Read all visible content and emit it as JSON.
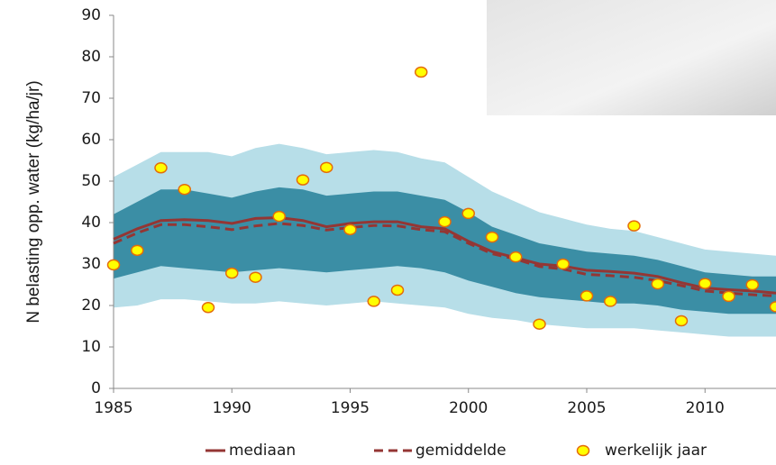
{
  "chart_data": {
    "type": "line",
    "y_label": "N belasting opp. water (kg/ha/jr)",
    "x": [
      1985,
      1986,
      1987,
      1988,
      1989,
      1990,
      1991,
      1992,
      1993,
      1994,
      1995,
      1996,
      1997,
      1998,
      1999,
      2000,
      2001,
      2002,
      2003,
      2004,
      2005,
      2006,
      2007,
      2008,
      2009,
      2010,
      2011,
      2012,
      2013
    ],
    "xlim": [
      1985,
      2013
    ],
    "xticks": [
      1985,
      1990,
      1995,
      2000,
      2005,
      2010
    ],
    "ylim": [
      0,
      90
    ],
    "yticks": [
      0,
      10,
      20,
      30,
      40,
      50,
      60,
      70,
      80,
      90
    ],
    "grid": false,
    "legend": "bottom",
    "bands": [
      {
        "color": "#b7dee8",
        "upper": [
          51,
          54,
          57,
          57,
          57,
          56,
          58,
          59,
          58,
          56.5,
          57,
          57.5,
          57,
          55.5,
          54.5,
          51,
          47.5,
          45,
          42.5,
          41,
          39.5,
          38.5,
          38,
          36.5,
          35,
          33.5,
          33,
          32.5,
          32
        ],
        "lower": [
          19.5,
          20,
          21.5,
          21.5,
          21,
          20.5,
          20.5,
          21,
          20.5,
          20,
          20.5,
          21,
          20.5,
          20,
          19.5,
          18,
          17,
          16.5,
          15.5,
          15,
          14.5,
          14.5,
          14.5,
          14,
          13.5,
          13,
          12.5,
          12.5,
          12.5
        ]
      },
      {
        "color": "#3b8ea5",
        "upper": [
          42,
          45,
          48,
          48,
          47,
          46,
          47.5,
          48.5,
          48,
          46.5,
          47,
          47.5,
          47.5,
          46.5,
          45.5,
          42.5,
          39,
          37,
          35,
          34,
          33,
          32.5,
          32,
          31,
          29.5,
          28,
          27.5,
          27,
          27
        ],
        "lower": [
          26.5,
          28,
          29.5,
          29,
          28.5,
          28,
          28.5,
          29,
          28.5,
          28,
          28.5,
          29,
          29.5,
          29,
          28,
          26,
          24.5,
          23,
          22,
          21.5,
          21,
          20.5,
          20.5,
          20,
          19,
          18.5,
          18,
          18,
          18
        ]
      }
    ],
    "series": [
      {
        "name": "mediaan",
        "color": "#943634",
        "style": "solid",
        "values": [
          36,
          38.5,
          40.5,
          40.7,
          40.5,
          39.8,
          41,
          41.2,
          40.5,
          39,
          39.8,
          40.2,
          40.2,
          39,
          38.5,
          35.5,
          33,
          31.5,
          30,
          29.5,
          28.5,
          28.2,
          27.8,
          27,
          25.5,
          24.2,
          23.8,
          23.5,
          23
        ]
      },
      {
        "name": "gemiddelde",
        "color": "#943634",
        "style": "dashed",
        "values": [
          35,
          37.5,
          39.5,
          39.5,
          39,
          38.3,
          39.2,
          39.8,
          39.3,
          38.2,
          38.8,
          39.3,
          39.2,
          38.3,
          37.8,
          35,
          32.5,
          31.2,
          29.4,
          28.8,
          27.5,
          27.2,
          26.8,
          26,
          24.8,
          23.5,
          23,
          22.6,
          22.3
        ]
      },
      {
        "name": "werkelijk jaar",
        "color": "#ffff00",
        "edge_color": "#e46c0a",
        "style": "markers",
        "values": [
          29.8,
          33.3,
          53.2,
          48,
          19.5,
          27.8,
          26.8,
          41.5,
          50.3,
          53.3,
          38.3,
          21,
          23.7,
          76.3,
          40.2,
          42.2,
          36.5,
          31.7,
          15.5,
          30,
          22.3,
          21,
          39.2,
          25.2,
          16.3,
          25.3,
          22.2,
          25,
          19.7
        ]
      }
    ]
  }
}
